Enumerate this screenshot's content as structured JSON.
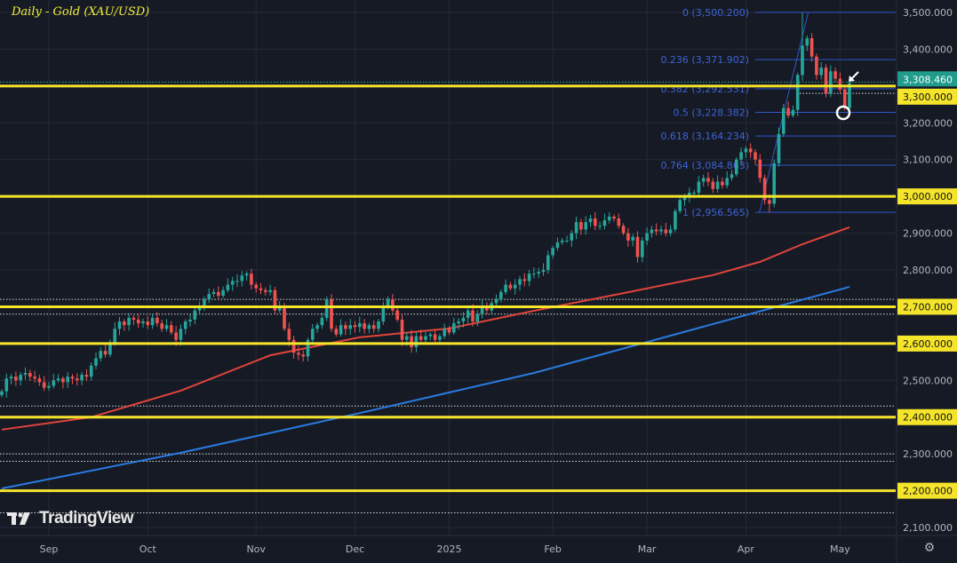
{
  "title": "Daily - Gold (XAU/USD)",
  "logo_text": "TradingView",
  "colors": {
    "bg": "#161a25",
    "up": "#26a69a",
    "down": "#ef5350",
    "support": "#f5e52a",
    "fib": "#2f57c9",
    "ma_fast": "#e0443c",
    "ma_slow": "#2a7be0",
    "last_price_bg": "#1f9c8c",
    "grid": "#262a36"
  },
  "chart_data": {
    "type": "candlestick",
    "title": "Daily - Gold (XAU/USD)",
    "ylim": [
      2050,
      3540
    ],
    "y_ticks": [
      2100,
      2200,
      2300,
      2400,
      2500,
      2600,
      2700,
      2800,
      2900,
      3000,
      3100,
      3200,
      3300,
      3400,
      3500
    ],
    "y_tick_labels": [
      "2,100.000",
      "2,200.000",
      "2,300.000",
      "2,400.000",
      "2,500.000",
      "2,600.000",
      "2,700.000",
      "2,800.000",
      "2,900.000",
      "3,000.000",
      "3,100.000",
      "3,200.000",
      "3,300.000",
      "3,400.000",
      "3,500.000"
    ],
    "x_ticks": [
      {
        "label": "Sep",
        "bar": 10
      },
      {
        "label": "Oct",
        "bar": 31
      },
      {
        "label": "Nov",
        "bar": 54
      },
      {
        "label": "Dec",
        "bar": 75
      },
      {
        "label": "2025",
        "bar": 95
      },
      {
        "label": "Feb",
        "bar": 117
      },
      {
        "label": "Mar",
        "bar": 137
      },
      {
        "label": "Apr",
        "bar": 158
      },
      {
        "label": "May",
        "bar": 178
      }
    ],
    "closes": [
      2470,
      2505,
      2510,
      2500,
      2515,
      2520,
      2510,
      2505,
      2495,
      2480,
      2485,
      2500,
      2505,
      2495,
      2510,
      2505,
      2500,
      2515,
      2510,
      2540,
      2560,
      2580,
      2570,
      2600,
      2640,
      2660,
      2650,
      2670,
      2665,
      2655,
      2660,
      2650,
      2670,
      2655,
      2640,
      2650,
      2630,
      2610,
      2640,
      2660,
      2665,
      2690,
      2700,
      2720,
      2735,
      2740,
      2730,
      2745,
      2760,
      2770,
      2770,
      2785,
      2790,
      2760,
      2750,
      2745,
      2740,
      2745,
      2690,
      2700,
      2640,
      2610,
      2575,
      2570,
      2565,
      2610,
      2640,
      2650,
      2670,
      2720,
      2640,
      2625,
      2650,
      2640,
      2650,
      2645,
      2655,
      2640,
      2650,
      2640,
      2660,
      2700,
      2720,
      2690,
      2665,
      2610,
      2620,
      2590,
      2620,
      2610,
      2620,
      2625,
      2610,
      2620,
      2640,
      2630,
      2655,
      2660,
      2670,
      2690,
      2660,
      2680,
      2700,
      2690,
      2710,
      2720,
      2740,
      2760,
      2750,
      2760,
      2775,
      2770,
      2790,
      2790,
      2795,
      2800,
      2840,
      2860,
      2875,
      2880,
      2880,
      2900,
      2930,
      2910,
      2930,
      2940,
      2920,
      2920,
      2935,
      2945,
      2940,
      2920,
      2900,
      2880,
      2890,
      2835,
      2880,
      2900,
      2910,
      2905,
      2910,
      2900,
      2910,
      2960,
      2990,
      3000,
      3010,
      3010,
      3040,
      3050,
      3040,
      3020,
      3040,
      3030,
      3050,
      3060,
      3100,
      3120,
      3130,
      3120,
      3100,
      3050,
      2990,
      2980,
      3090,
      3170,
      3240,
      3220,
      3235,
      3330,
      3410,
      3430,
      3380,
      3330,
      3350,
      3280,
      3340,
      3320,
      3290,
      3240,
      3308.46
    ],
    "moving_averages": [
      {
        "name": "MA fast (red)",
        "points": [
          [
            0,
            2366
          ],
          [
            19,
            2400
          ],
          [
            38,
            2472
          ],
          [
            57,
            2568
          ],
          [
            76,
            2617
          ],
          [
            95,
            2641
          ],
          [
            113,
            2689
          ],
          [
            132,
            2737
          ],
          [
            151,
            2786
          ],
          [
            161,
            2822
          ],
          [
            170,
            2870
          ],
          [
            180,
            2916
          ]
        ]
      },
      {
        "name": "MA slow (blue)",
        "points": [
          [
            0,
            2206
          ],
          [
            38,
            2303
          ],
          [
            76,
            2411
          ],
          [
            113,
            2520
          ],
          [
            151,
            2653
          ],
          [
            180,
            2754
          ]
        ]
      }
    ],
    "support_levels": [
      3300,
      3000,
      2700,
      2600,
      2400,
      2200
    ],
    "dotted_levels": [
      3280,
      2720,
      2680,
      2430,
      2300,
      2280,
      2140
    ],
    "fibonacci": {
      "levels": [
        {
          "ratio": "0",
          "price": 3500.2,
          "label": "0 (3,500.200)"
        },
        {
          "ratio": "0.236",
          "price": 3371.902,
          "label": "0.236 (3,371.902)"
        },
        {
          "ratio": "0.382",
          "price": 3292.531,
          "label": "0.382 (3,292.531)"
        },
        {
          "ratio": "0.5",
          "price": 3228.382,
          "label": "0.5 (3,228.382)"
        },
        {
          "ratio": "0.618",
          "price": 3164.234,
          "label": "0.618 (3,164.234)"
        },
        {
          "ratio": "0.764",
          "price": 3084.863,
          "label": "0.764 (3,084.863)"
        },
        {
          "ratio": "1",
          "price": 2956.565,
          "label": "1 (2,956.565)"
        }
      ],
      "trend_from": [
        162,
        2956.565
      ],
      "trend_to": [
        172,
        3500.2
      ]
    },
    "last_price": 3308.46,
    "last_price_label": "3,308.460"
  }
}
